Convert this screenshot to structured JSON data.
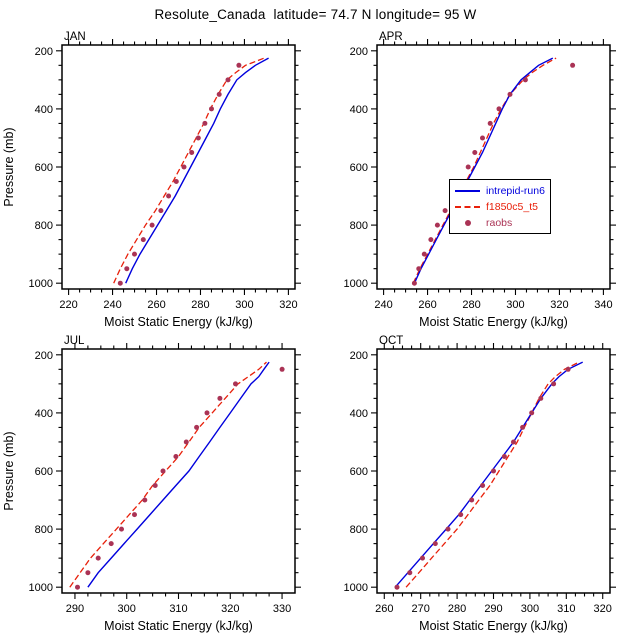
{
  "chart_data": {
    "type": "line",
    "title": "Resolute_Canada  latitude= 74.7 N longitude= 95 W",
    "xlabel": "Moist Static Energy (kJ/kg)",
    "ylabel": "Pressure (mb)",
    "y_axis_inverted": true,
    "ylim": [
      180,
      1020
    ],
    "yticks": [
      200,
      400,
      600,
      800,
      1000
    ],
    "yminor": 50,
    "grid": false,
    "colors": {
      "intrepid_run6": "#0000dd",
      "f1850c5_t5": "#e8200a",
      "raobs": "#aa3355"
    },
    "line_pressures": [
      1000,
      950,
      900,
      850,
      800,
      750,
      700,
      650,
      600,
      550,
      500,
      450,
      400,
      350,
      300,
      275,
      250,
      225
    ],
    "obs_pressures": [
      1000,
      950,
      900,
      850,
      800,
      750,
      700,
      650,
      600,
      550,
      500,
      450,
      400,
      350,
      300,
      250
    ],
    "legend": {
      "position": "inside-apr-panel",
      "items": [
        {
          "label": "intrepid-run6",
          "color": "#0000dd",
          "style": "solid"
        },
        {
          "label": "f1850c5_t5",
          "color": "#e8200a",
          "style": "dashed"
        },
        {
          "label": "raobs",
          "color": "#aa3355",
          "style": "dot"
        }
      ]
    },
    "panels": [
      {
        "month": "JAN",
        "xlim": [
          217,
          323
        ],
        "xticks": [
          220,
          240,
          260,
          280,
          300,
          320
        ],
        "xminor": 5,
        "show_ylabel": true,
        "series": {
          "intrepid_run6": [
            246,
            249,
            252.5,
            256.5,
            260.5,
            264.5,
            268.5,
            272,
            275.5,
            279,
            282.5,
            286,
            289,
            292.5,
            296.5,
            300.5,
            305,
            311
          ],
          "f1850c5_t5": [
            240.5,
            243.5,
            247,
            251,
            255,
            259.5,
            263.5,
            267.5,
            271,
            274.5,
            278,
            281.5,
            284.5,
            288,
            292,
            296,
            300.5,
            309
          ],
          "raobs": [
            243.5,
            246.5,
            250,
            254,
            258,
            262,
            265.5,
            269,
            272.5,
            276,
            279,
            282,
            285,
            288.5,
            292.5,
            297.5
          ]
        }
      },
      {
        "month": "APR",
        "xlim": [
          237,
          343
        ],
        "xticks": [
          240,
          260,
          280,
          300,
          320,
          340
        ],
        "xminor": 5,
        "show_ylabel": false,
        "series": {
          "intrepid_run6": [
            254,
            257,
            260.5,
            264,
            267.5,
            271,
            274.5,
            278,
            281.5,
            285,
            288,
            291,
            294,
            297.5,
            302.5,
            306.5,
            310.5,
            317
          ],
          "f1850c5_t5": [
            253.5,
            256.5,
            260,
            263.5,
            267,
            270.5,
            274,
            277.5,
            281,
            284,
            287,
            290,
            293.5,
            297.5,
            303.5,
            307.5,
            312.5,
            318.5
          ],
          "raobs": [
            254,
            256,
            258.5,
            261.5,
            264.5,
            268,
            271.5,
            275,
            278.5,
            281.5,
            285,
            288.5,
            292.5,
            297.5,
            304.5,
            326
          ]
        }
      },
      {
        "month": "JUL",
        "xlim": [
          287.5,
          332.5
        ],
        "xticks": [
          290,
          300,
          310,
          320,
          330
        ],
        "xminor": 2.5,
        "show_ylabel": true,
        "series": {
          "intrepid_run6": [
            292.5,
            294.5,
            297,
            299.5,
            302,
            304.5,
            307,
            309.5,
            312,
            314,
            316,
            318,
            320,
            322,
            324,
            325.5,
            326.5,
            327.5
          ],
          "f1850c5_t5": [
            289,
            291,
            293,
            295.5,
            298,
            300.5,
            303,
            305,
            307.5,
            310,
            312,
            314,
            316.5,
            319,
            321.5,
            323.5,
            325.5,
            327
          ],
          "raobs": [
            290.5,
            292.5,
            294.5,
            297,
            299,
            301.5,
            303.5,
            305.5,
            307,
            309.5,
            311.5,
            313.5,
            315.5,
            318,
            321,
            330
          ]
        }
      },
      {
        "month": "OCT",
        "xlim": [
          258,
          322
        ],
        "xticks": [
          260,
          270,
          280,
          290,
          300,
          310,
          320
        ],
        "xminor": 2.5,
        "show_ylabel": false,
        "series": {
          "intrepid_run6": [
            263,
            266.5,
            270,
            273.5,
            277,
            280.5,
            283.5,
            286.5,
            289.5,
            292.5,
            295.5,
            298,
            300.5,
            303,
            306,
            308,
            310.5,
            314.5
          ],
          "f1850c5_t5": [
            266,
            269.5,
            273,
            276.5,
            280,
            283,
            286,
            289,
            291.5,
            294,
            296.5,
            298.5,
            300.5,
            302.5,
            305,
            307,
            309.5,
            313.5
          ],
          "raobs": [
            263.5,
            267,
            270.5,
            274,
            277.5,
            281,
            284,
            287,
            290,
            293,
            295.5,
            298,
            300.5,
            303,
            306.5,
            310.5
          ]
        }
      }
    ]
  }
}
